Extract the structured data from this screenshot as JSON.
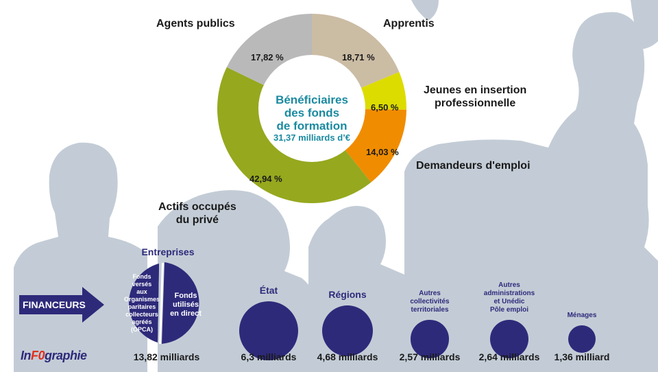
{
  "chart_data": {
    "type": "pie",
    "center_label": {
      "line1": "Bénéficiaires",
      "line2": "des fonds",
      "line3": "de formation",
      "line4": "31,37 milliards d’€"
    },
    "slices": [
      {
        "name": "Apprentis",
        "value": 18.71,
        "label": "18,71 %",
        "color": "#cbbca4"
      },
      {
        "name_line1": "Jeunes en insertion",
        "name_line2": "professionnelle",
        "value": 6.5,
        "label": "6,50 %",
        "color": "#dcdc00"
      },
      {
        "name": "Demandeurs d'emploi",
        "value": 14.03,
        "label": "14,03 %",
        "color": "#f08c00"
      },
      {
        "name_line1": "Actifs occupés",
        "name_line2": "du privé",
        "value": 42.94,
        "label": "42,94 %",
        "color": "#96a81e"
      },
      {
        "name": "Agents publics",
        "value": 17.82,
        "label": "17,82 %",
        "color": "#b9b9b9"
      }
    ]
  },
  "financeurs": {
    "arrow_label": "FINANCEURS",
    "entreprises": {
      "title": "Entreprises",
      "left_lines": [
        "Fonds",
        "versés",
        "aux",
        "Organismes",
        "paritaires",
        "collecteurs",
        "agréés",
        "(OPCA)"
      ],
      "right_lines": [
        "Fonds",
        "utilisés",
        "en direct"
      ],
      "amount": "13,82 milliards",
      "value": 13.82
    },
    "others": [
      {
        "title_lines": [
          "État"
        ],
        "amount": "6,3 milliards",
        "value": 6.3
      },
      {
        "title_lines": [
          "Régions"
        ],
        "amount": "4,68 milliards",
        "value": 4.68
      },
      {
        "title_lines": [
          "Autres",
          "collectivités",
          "territoriales"
        ],
        "amount": "2,57 milliards",
        "value": 2.57
      },
      {
        "title_lines": [
          "Autres",
          "administrations",
          "et Unédic",
          "Pôle emploi"
        ],
        "amount": "2,64 milliards",
        "value": 2.64
      },
      {
        "title_lines": [
          "Ménages"
        ],
        "amount": "1,36 milliard",
        "value": 1.36
      }
    ]
  },
  "logo": {
    "part1": "In",
    "part2": "F0",
    "part3": "graphie"
  },
  "colors": {
    "navy": "#2e2a7a",
    "teal": "#1a8aa0",
    "silhouette": "#c3ccd6"
  }
}
